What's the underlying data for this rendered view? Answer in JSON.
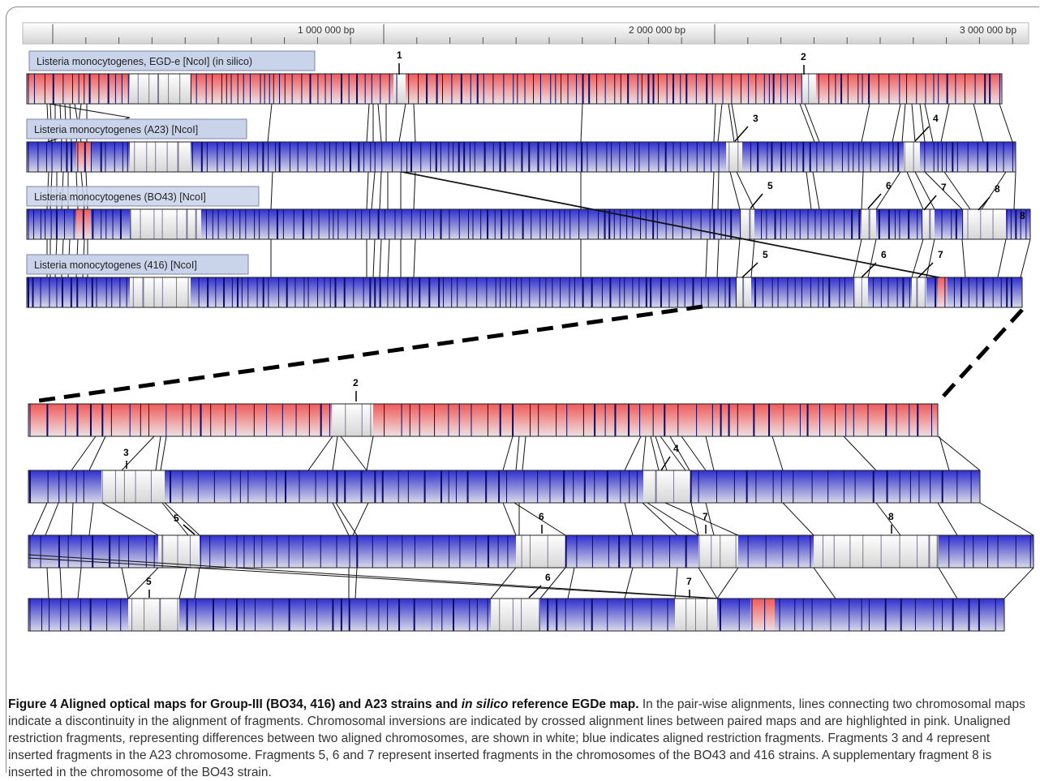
{
  "colors": {
    "aligned_blue": "#3c3ccf",
    "inversion_pink": "#ee6a6a",
    "unaligned_white": "#f4f4f4",
    "band_dark": "#0b0b6a",
    "label_box": "#c9d3ea"
  },
  "ruler": {
    "tick_labels": [
      "1 000 000 bp",
      "2 000 000 bp",
      "3 000 000 bp"
    ]
  },
  "maps": [
    {
      "id": "egde",
      "label": "Listeria monocytogenes, EGD-e [NcoI] (in silico)",
      "scheme": "pink"
    },
    {
      "id": "a23",
      "label": "Listeria monocytogenes (A23) [NcoI]",
      "scheme": "blue"
    },
    {
      "id": "bo43",
      "label": "Listeria monocytogenes (BO43) [NcoI]",
      "scheme": "blue"
    },
    {
      "id": "s416",
      "label": "Listeria monocytogenes (416) [NcoI]",
      "scheme": "blue"
    }
  ],
  "fragment_marks": {
    "top": [
      "1",
      "2",
      "3",
      "4",
      "5",
      "6",
      "7",
      "8",
      "8",
      "5",
      "6",
      "7"
    ],
    "zoom": [
      "2",
      "3",
      "4",
      "5",
      "6",
      "7",
      "8",
      "5",
      "6",
      "7"
    ]
  },
  "caption": {
    "title_part1": "Figure 4 Aligned optical maps for Group-III (BO34, 416) and A23 strains and ",
    "title_italic": "in silico",
    "title_part2": " reference EGDe map.",
    "body": " In the pair-wise alignments, lines connecting two chromosomal maps indicate a discontinuity in the alignment of fragments. Chromosomal inversions are indicated by crossed alignment lines between paired maps and are highlighted in pink. Unaligned restriction fragments, representing differences between two aligned chromosomes, are shown in white; blue indicates aligned restriction fragments. Fragments 3 and 4 represent inserted fragments in the A23 chromosome. Fragments 5, 6 and 7 represent inserted fragments in the chromosomes of the BO43 and 416 strains. A supplementary fragment 8 is inserted in the chromosome of the BO43 strain."
  }
}
